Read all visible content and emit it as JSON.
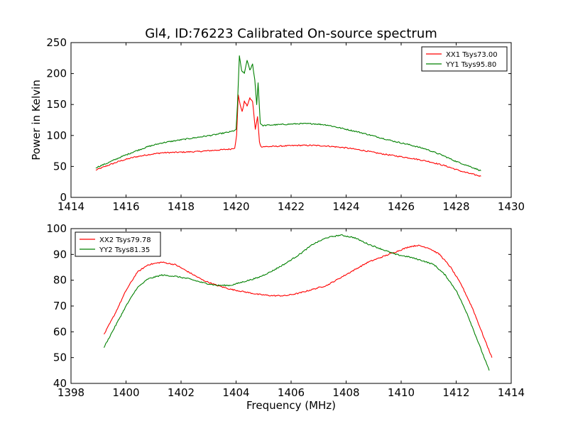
{
  "chart_data": [
    {
      "type": "line",
      "title": "Gl4, ID:76223 Calibrated On-source spectrum",
      "xlabel": "",
      "ylabel": "Power in Kelvin",
      "xlim": [
        1414,
        1430
      ],
      "ylim": [
        0,
        250
      ],
      "xticks": [
        "1414",
        "1416",
        "1418",
        "1420",
        "1422",
        "1424",
        "1426",
        "1428",
        "1430"
      ],
      "yticks": [
        "0",
        "50",
        "100",
        "150",
        "200",
        "250"
      ],
      "grid": false,
      "legend_position": "top-right",
      "series": [
        {
          "name": "XX1 Tsys73.00",
          "color": "#ff0000",
          "points": [
            [
              1414.9,
              44
            ],
            [
              1415.3,
              51
            ],
            [
              1415.8,
              59
            ],
            [
              1416.3,
              65
            ],
            [
              1416.8,
              69
            ],
            [
              1417.3,
              72
            ],
            [
              1418.0,
              73
            ],
            [
              1418.6,
              74
            ],
            [
              1419.2,
              76
            ],
            [
              1419.8,
              78
            ],
            [
              1419.95,
              80
            ],
            [
              1420.02,
              100
            ],
            [
              1420.08,
              165
            ],
            [
              1420.15,
              150
            ],
            [
              1420.22,
              138
            ],
            [
              1420.3,
              155
            ],
            [
              1420.4,
              148
            ],
            [
              1420.5,
              160
            ],
            [
              1420.6,
              155
            ],
            [
              1420.7,
              110
            ],
            [
              1420.78,
              130
            ],
            [
              1420.85,
              90
            ],
            [
              1420.9,
              82
            ],
            [
              1421.2,
              82
            ],
            [
              1421.7,
              83
            ],
            [
              1422.3,
              84
            ],
            [
              1422.8,
              84
            ],
            [
              1423.3,
              83
            ],
            [
              1424.0,
              80
            ],
            [
              1424.6,
              76
            ],
            [
              1425.2,
              71
            ],
            [
              1425.8,
              67
            ],
            [
              1426.4,
              63
            ],
            [
              1427.0,
              58
            ],
            [
              1427.6,
              51
            ],
            [
              1428.2,
              42
            ],
            [
              1428.9,
              34
            ]
          ]
        },
        {
          "name": "YY1 Tsys95.80",
          "color": "#008000",
          "points": [
            [
              1414.9,
              48
            ],
            [
              1415.3,
              55
            ],
            [
              1415.8,
              65
            ],
            [
              1416.3,
              74
            ],
            [
              1416.8,
              82
            ],
            [
              1417.3,
              88
            ],
            [
              1418.0,
              93
            ],
            [
              1418.6,
              97
            ],
            [
              1419.2,
              101
            ],
            [
              1419.8,
              106
            ],
            [
              1420.0,
              109
            ],
            [
              1420.05,
              150
            ],
            [
              1420.12,
              228
            ],
            [
              1420.2,
              205
            ],
            [
              1420.3,
              200
            ],
            [
              1420.4,
              222
            ],
            [
              1420.5,
              205
            ],
            [
              1420.6,
              215
            ],
            [
              1420.68,
              190
            ],
            [
              1420.75,
              150
            ],
            [
              1420.8,
              185
            ],
            [
              1420.88,
              120
            ],
            [
              1420.95,
              116
            ],
            [
              1421.3,
              117
            ],
            [
              1421.8,
              118
            ],
            [
              1422.3,
              119
            ],
            [
              1422.8,
              119
            ],
            [
              1423.3,
              117
            ],
            [
              1423.9,
              111
            ],
            [
              1424.5,
              105
            ],
            [
              1425.1,
              98
            ],
            [
              1425.7,
              91
            ],
            [
              1426.3,
              85
            ],
            [
              1426.9,
              78
            ],
            [
              1427.5,
              68
            ],
            [
              1428.0,
              58
            ],
            [
              1428.5,
              50
            ],
            [
              1428.9,
              43
            ]
          ]
        }
      ]
    },
    {
      "type": "line",
      "title": "",
      "xlabel": "Frequency (MHz)",
      "ylabel": "",
      "xlim": [
        1398,
        1414
      ],
      "ylim": [
        40,
        100
      ],
      "xticks": [
        "1398",
        "1400",
        "1402",
        "1404",
        "1406",
        "1408",
        "1410",
        "1412",
        "1414"
      ],
      "yticks": [
        "40",
        "50",
        "60",
        "70",
        "80",
        "90",
        "100"
      ],
      "grid": false,
      "legend_position": "top-left",
      "series": [
        {
          "name": "XX2 Tsys79.78",
          "color": "#ff0000",
          "points": [
            [
              1399.2,
              59
            ],
            [
              1399.6,
              67
            ],
            [
              1400.0,
              76
            ],
            [
              1400.4,
              83
            ],
            [
              1400.8,
              86
            ],
            [
              1401.3,
              87
            ],
            [
              1401.8,
              86
            ],
            [
              1402.3,
              83
            ],
            [
              1402.8,
              80
            ],
            [
              1403.3,
              78
            ],
            [
              1403.8,
              76.5
            ],
            [
              1404.3,
              75.5
            ],
            [
              1404.8,
              74.5
            ],
            [
              1405.3,
              74
            ],
            [
              1405.8,
              74
            ],
            [
              1406.3,
              75
            ],
            [
              1406.8,
              76.5
            ],
            [
              1407.3,
              78
            ],
            [
              1407.8,
              81
            ],
            [
              1408.3,
              84
            ],
            [
              1408.8,
              87
            ],
            [
              1409.3,
              89
            ],
            [
              1409.8,
              91
            ],
            [
              1410.3,
              93
            ],
            [
              1410.6,
              93.5
            ],
            [
              1411.0,
              92.5
            ],
            [
              1411.4,
              90
            ],
            [
              1411.8,
              85
            ],
            [
              1412.2,
              78
            ],
            [
              1412.6,
              69
            ],
            [
              1413.0,
              58
            ],
            [
              1413.3,
              50
            ]
          ]
        },
        {
          "name": "YY2 Tsys81.35",
          "color": "#008000",
          "points": [
            [
              1399.2,
              54
            ],
            [
              1399.6,
              62
            ],
            [
              1400.0,
              70
            ],
            [
              1400.4,
              77
            ],
            [
              1400.8,
              80.5
            ],
            [
              1401.3,
              82
            ],
            [
              1401.8,
              81.5
            ],
            [
              1402.3,
              80.5
            ],
            [
              1402.8,
              79
            ],
            [
              1403.3,
              78
            ],
            [
              1403.8,
              78
            ],
            [
              1404.3,
              79.5
            ],
            [
              1404.8,
              81
            ],
            [
              1405.3,
              83.5
            ],
            [
              1405.8,
              86.5
            ],
            [
              1406.3,
              90
            ],
            [
              1406.8,
              94
            ],
            [
              1407.3,
              96.5
            ],
            [
              1407.8,
              97.5
            ],
            [
              1408.3,
              96.5
            ],
            [
              1408.8,
              94
            ],
            [
              1409.3,
              92
            ],
            [
              1409.8,
              90
            ],
            [
              1410.3,
              89
            ],
            [
              1410.8,
              87.5
            ],
            [
              1411.2,
              86
            ],
            [
              1411.6,
              82
            ],
            [
              1412.0,
              76
            ],
            [
              1412.4,
              67
            ],
            [
              1412.8,
              56
            ],
            [
              1413.2,
              45
            ]
          ]
        }
      ]
    }
  ]
}
